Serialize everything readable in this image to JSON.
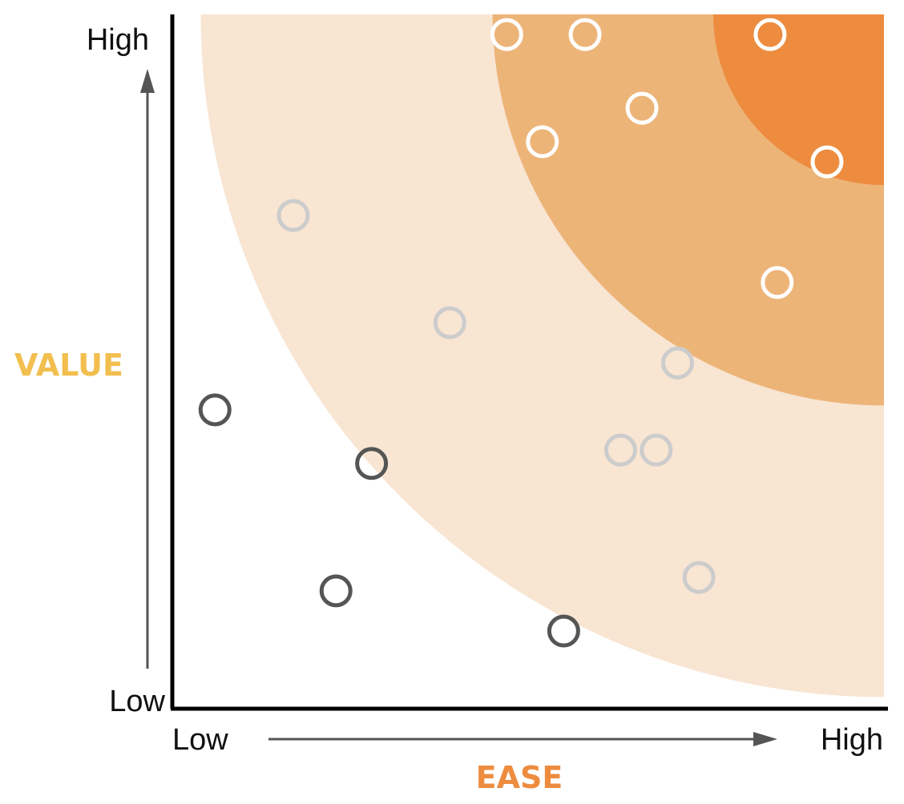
{
  "chart_data": {
    "type": "scatter",
    "title": "",
    "xlabel": "EASE",
    "ylabel": "VALUE",
    "x_ticks": [
      "Low",
      "High"
    ],
    "y_ticks": [
      "Low",
      "High"
    ],
    "xlim": [
      0,
      10
    ],
    "ylim": [
      0,
      10
    ],
    "grid": false,
    "zones": [
      {
        "inner_radius": 0,
        "outer_radius": 2.4,
        "color": "#ED8C3F"
      },
      {
        "inner_radius": 2.4,
        "outer_radius": 5.5,
        "color": "#EDB478"
      },
      {
        "inner_radius": 5.5,
        "outer_radius": 9.6,
        "color": "#F8E5D2"
      }
    ],
    "series": [
      {
        "color": "#FFFFFF",
        "points": [
          [
            4.7,
            9.7
          ],
          [
            5.8,
            9.7
          ],
          [
            8.4,
            9.7
          ],
          [
            6.6,
            8.6
          ],
          [
            5.2,
            8.1
          ],
          [
            9.2,
            7.8
          ],
          [
            8.5,
            6.0
          ]
        ]
      },
      {
        "color": "#CCCCCC",
        "points": [
          [
            1.7,
            7.0
          ],
          [
            3.9,
            5.4
          ],
          [
            7.1,
            4.8
          ],
          [
            6.3,
            3.5
          ],
          [
            6.8,
            3.5
          ],
          [
            7.4,
            1.6
          ]
        ]
      },
      {
        "color": "#555555",
        "points": [
          [
            0.6,
            4.1
          ],
          [
            2.8,
            3.3
          ],
          [
            2.3,
            1.4
          ],
          [
            5.5,
            0.8
          ]
        ]
      }
    ],
    "colors": {
      "axis": "#000000",
      "arrow": "#555555",
      "xlabel": "#ED8C3F",
      "ylabel": "#F2BE4E"
    }
  }
}
